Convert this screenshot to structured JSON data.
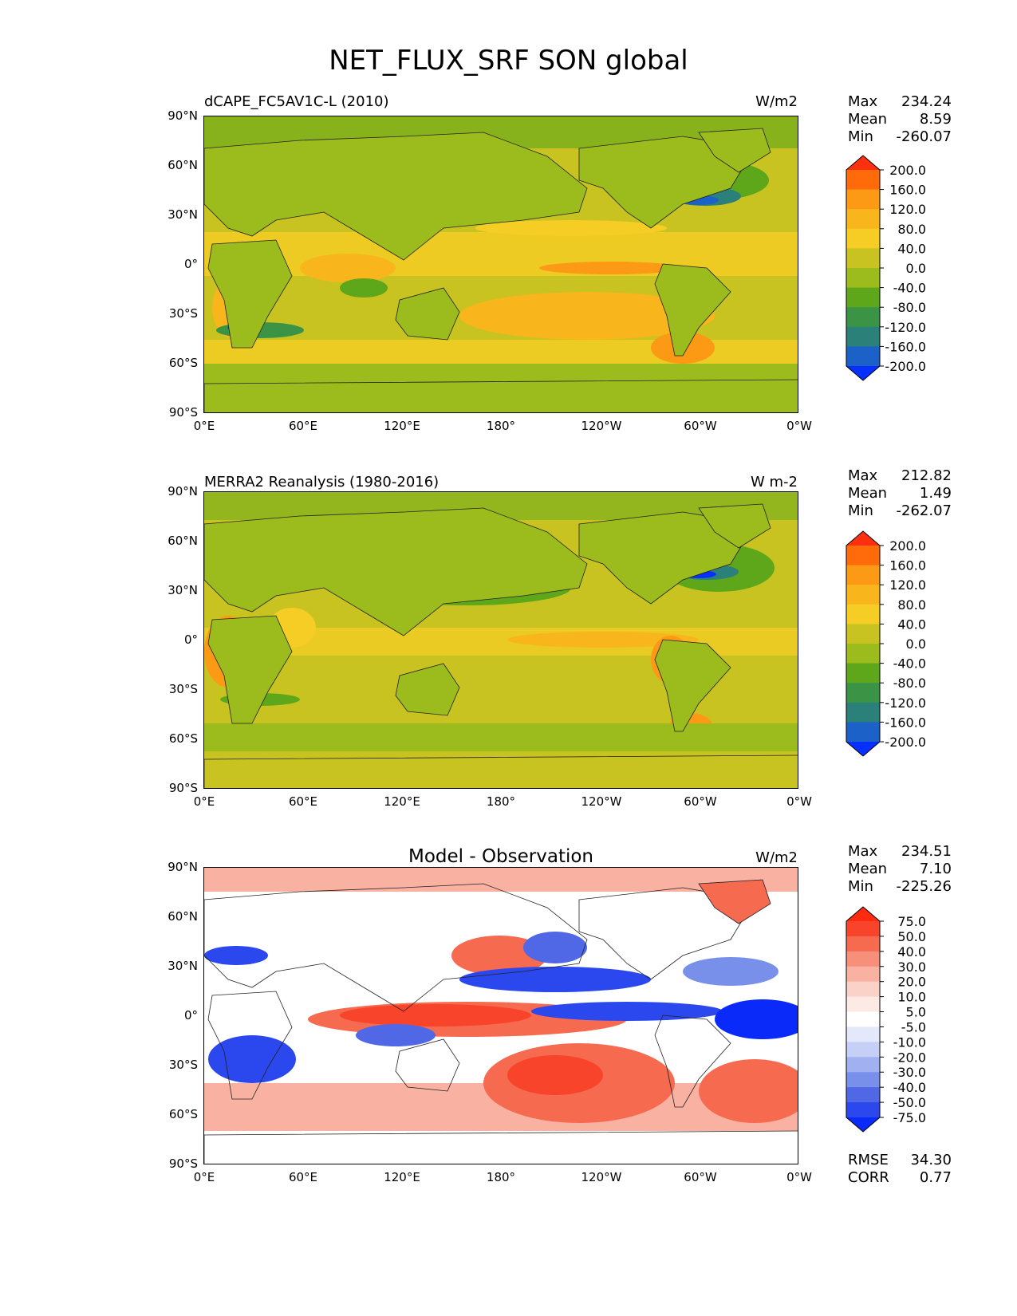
{
  "page_title": "NET_FLUX_SRF SON global",
  "map_colors": {
    "ocean_base": "#c8c320",
    "land_base": "#9cbb1d",
    "diff_base": "#ffffff"
  },
  "x_ticks": [
    "0°E",
    "60°E",
    "120°E",
    "180°",
    "120°W",
    "60°W",
    "0°W"
  ],
  "y_ticks": [
    "90°N",
    "60°N",
    "30°N",
    "0°",
    "30°S",
    "60°S",
    "90°S"
  ],
  "chart_data": [
    {
      "type": "heatmap",
      "title": "dCAPE_FC5AV1C-L (2010)",
      "units": "W/m2",
      "stats": {
        "max_label": "Max",
        "max": "234.24",
        "mean_label": "Mean",
        "mean": "8.59",
        "min_label": "Min",
        "min": "-260.07"
      },
      "colorbar": {
        "labels": [
          "200.0",
          "160.0",
          "120.0",
          "80.0",
          "40.0",
          "0.0",
          "-40.0",
          "-80.0",
          "-120.0",
          "-160.0",
          "-200.0"
        ],
        "colors": [
          "#ff3010",
          "#ff6a0a",
          "#fd9a15",
          "#f8b51c",
          "#f5cd24",
          "#c8c320",
          "#9cbb1d",
          "#5ea71a",
          "#3b9446",
          "#2b8079",
          "#1b61c8",
          "#0530ff"
        ]
      },
      "x_range": [
        0,
        360
      ],
      "y_range": [
        -90,
        90
      ]
    },
    {
      "type": "heatmap",
      "title": "MERRA2 Reanalysis (1980-2016)",
      "units": "W m-2",
      "stats": {
        "max_label": "Max",
        "max": "212.82",
        "mean_label": "Mean",
        "mean": "1.49",
        "min_label": "Min",
        "min": "-262.07"
      },
      "colorbar": {
        "labels": [
          "200.0",
          "160.0",
          "120.0",
          "80.0",
          "40.0",
          "0.0",
          "-40.0",
          "-80.0",
          "-120.0",
          "-160.0",
          "-200.0"
        ],
        "colors": [
          "#ff3010",
          "#ff6a0a",
          "#fd9a15",
          "#f8b51c",
          "#f5cd24",
          "#c8c320",
          "#9cbb1d",
          "#5ea71a",
          "#3b9446",
          "#2b8079",
          "#1b61c8",
          "#0530ff"
        ]
      },
      "x_range": [
        0,
        360
      ],
      "y_range": [
        -90,
        90
      ]
    },
    {
      "type": "heatmap",
      "title": "Model - Observation",
      "units": "W/m2",
      "stats": {
        "max_label": "Max",
        "max": "234.51",
        "mean_label": "Mean",
        "mean": "7.10",
        "min_label": "Min",
        "min": "-225.26"
      },
      "metrics": {
        "rmse_label": "RMSE",
        "rmse": "34.30",
        "corr_label": "CORR",
        "corr": "0.77"
      },
      "colorbar": {
        "labels": [
          "75.0",
          "50.0",
          "40.0",
          "30.0",
          "20.0",
          "10.0",
          "5.0",
          "-5.0",
          "-10.0",
          "-20.0",
          "-30.0",
          "-40.0",
          "-50.0",
          "-75.0"
        ],
        "colors": [
          "#ff2a10",
          "#f8442a",
          "#f66a50",
          "#f7907a",
          "#f9b2a2",
          "#fbd2c8",
          "#fdeae5",
          "#ffffff",
          "#e4e8fb",
          "#c6cff6",
          "#a0b0f0",
          "#7890ea",
          "#5068e6",
          "#2a48ee",
          "#0a2afa"
        ]
      },
      "x_range": [
        0,
        360
      ],
      "y_range": [
        -90,
        90
      ]
    }
  ]
}
